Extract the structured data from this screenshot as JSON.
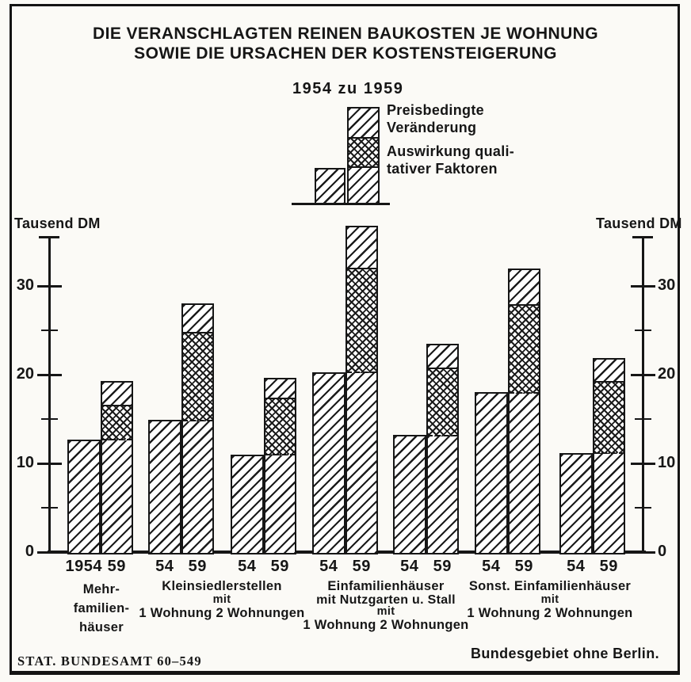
{
  "title": {
    "line1": "DIE VERANSCHLAGTEN REINEN BAUKOSTEN JE WOHNUNG",
    "line2": "SOWIE DIE URSACHEN DER KOSTENSTEIGERUNG"
  },
  "legend": {
    "period": "1954 zu 1959",
    "entries": [
      {
        "label_lines": [
          "Preisbedingte",
          "Veränderung"
        ],
        "pattern": "diagonal-hatch"
      },
      {
        "label_lines": [
          "Auswirkung quali-",
          "tativer Faktoren"
        ],
        "pattern": "cross-hatch"
      }
    ]
  },
  "axis": {
    "unit_left": "Tausend DM",
    "unit_right": "Tausend DM"
  },
  "footer": {
    "source": "STAT. BUNDESAMT 60–549",
    "region": "Bundesgebiet ohne Berlin."
  },
  "chart_data": {
    "type": "bar",
    "stacked": true,
    "title": "Die veranschlagten reinen Baukosten je Wohnung sowie die Ursachen der Kostensteigerung",
    "ylabel": "Tausend DM",
    "ylim": [
      0,
      35
    ],
    "yticks_major": [
      0,
      10,
      20,
      30
    ],
    "yticks_minor": [
      5,
      15,
      25
    ],
    "categories": [
      "Mehrfamilienhäuser",
      "Kleinsiedlerstellen mit 1 Wohnung",
      "Kleinsiedlerstellen mit 2 Wohnungen",
      "Einfamilienhäuser mit Nutzgarten u. Stall mit 1 Wohnung",
      "Einfamilienhäuser mit Nutzgarten u. Stall mit 2 Wohnungen",
      "Sonst. Einfamilienhäuser mit 1 Wohnung",
      "Sonst. Einfamilienhäuser mit 2 Wohnungen"
    ],
    "year_tick_labels": [
      [
        "1954",
        "59"
      ],
      [
        "54",
        "59"
      ],
      [
        "54",
        "59"
      ],
      [
        "54",
        "59"
      ],
      [
        "54",
        "59"
      ],
      [
        "54",
        "59"
      ],
      [
        "54",
        "59"
      ]
    ],
    "series": [
      {
        "name": "1954",
        "values": [
          12.7,
          14.9,
          11.0,
          20.3,
          13.2,
          18.0,
          11.2
        ]
      },
      {
        "name": "Auswirkung qualitativer Faktoren",
        "values": [
          3.8,
          9.8,
          6.3,
          11.7,
          7.5,
          9.9,
          8.0
        ]
      },
      {
        "name": "Preisbedingte Veränderung",
        "values": [
          2.8,
          3.3,
          2.3,
          4.8,
          2.8,
          4.1,
          2.7
        ]
      }
    ],
    "totals_1959": [
      19.3,
      28.0,
      19.6,
      36.8,
      23.5,
      32.0,
      21.9
    ],
    "captions": [
      {
        "lines": [
          "Mehr-",
          "familien-",
          "häuser"
        ]
      },
      {
        "lines": [
          "Kleinsiedlerstellen",
          "mit",
          "1 Wohnung 2 Wohnungen"
        ]
      },
      {
        "lines": [
          "Einfamilienhäuser",
          "mit Nutzgarten u. Stall",
          "mit",
          "1 Wohnung 2 Wohnungen"
        ]
      },
      {
        "lines": [
          "Sonst. Einfamilienhäuser",
          "mit",
          "1 Wohnung 2 Wohnungen"
        ]
      }
    ]
  },
  "colors": {
    "ink": "#161616",
    "paper": "#fbfaf6"
  }
}
